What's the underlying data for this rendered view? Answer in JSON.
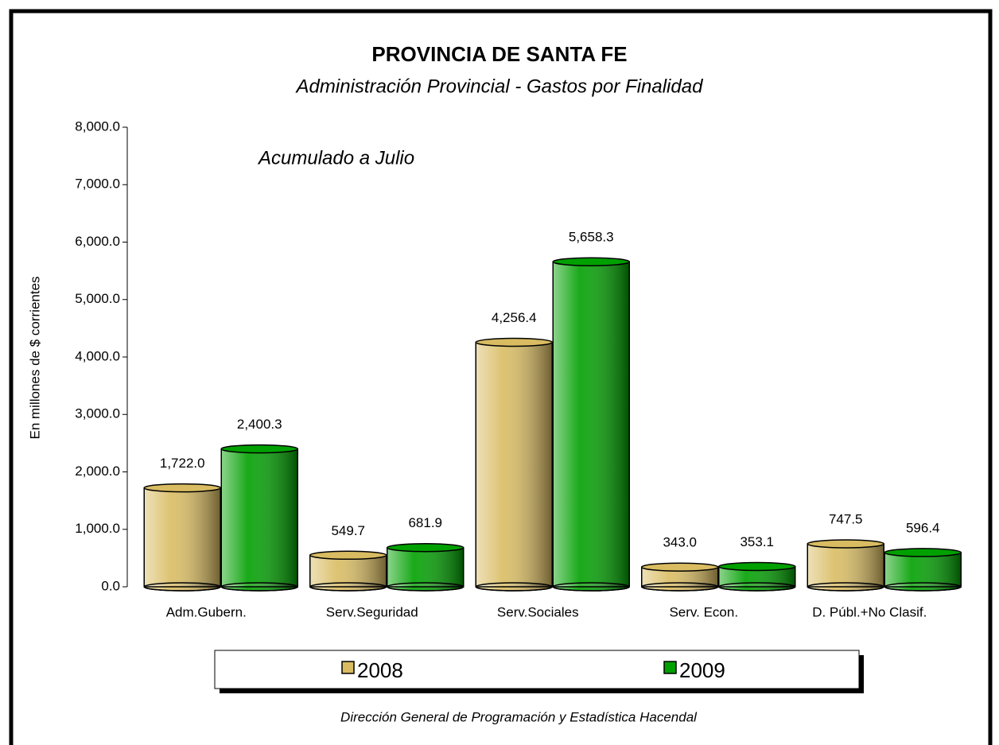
{
  "chart_data": {
    "type": "bar",
    "title": "PROVINCIA DE SANTA FE",
    "subtitle": "Administración Provincial - Gastos por Finalidad",
    "annotation": "Acumulado a Julio",
    "y_label": "En millones de $ corrientes",
    "footer": "Dirección General de Programación y Estadística Hacendal",
    "categories": [
      "Adm.Gubern.",
      "Serv.Seguridad",
      "Serv.Sociales",
      "Serv. Econ.",
      "D. Públ.+No Clasif."
    ],
    "series": [
      {
        "name": "2008",
        "color": "#d9bc62",
        "values": [
          1722.0,
          549.7,
          4256.4,
          343.0,
          747.5
        ],
        "value_labels": [
          "1,722.0",
          "549.7",
          "4,256.4",
          "343.0",
          "747.5"
        ]
      },
      {
        "name": "2009",
        "color": "#00a000",
        "values": [
          2400.3,
          681.9,
          5658.3,
          353.1,
          596.4
        ],
        "value_labels": [
          "2,400.3",
          "681.9",
          "5,658.3",
          "353.1",
          "596.4"
        ]
      }
    ],
    "ylim": [
      0,
      8000
    ],
    "yticks": [
      {
        "value": 0,
        "label": "0.0"
      },
      {
        "value": 1000,
        "label": "1,000.0"
      },
      {
        "value": 2000,
        "label": "2,000.0"
      },
      {
        "value": 3000,
        "label": "3,000.0"
      },
      {
        "value": 4000,
        "label": "4,000.0"
      },
      {
        "value": 5000,
        "label": "5,000.0"
      },
      {
        "value": 6000,
        "label": "6,000.0"
      },
      {
        "value": 7000,
        "label": "7,000.0"
      },
      {
        "value": 8000,
        "label": "8,000.0"
      }
    ],
    "grid": false,
    "legend": "bottom"
  }
}
